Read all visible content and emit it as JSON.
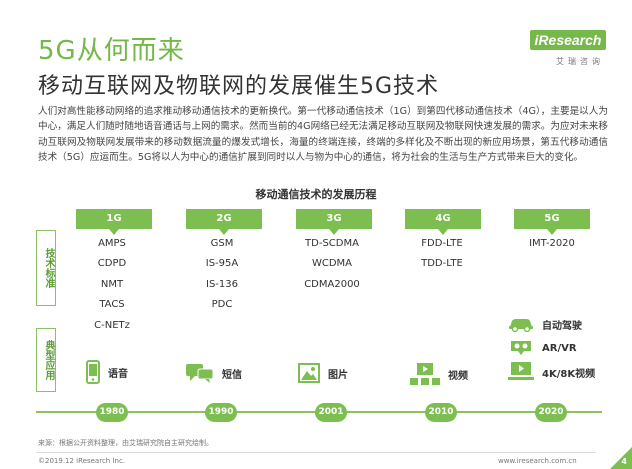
{
  "header": {
    "title": "5G从何而来",
    "subtitle": "移动互联网及物联网的发展催生5G技术"
  },
  "logo": {
    "brand": "iResearch",
    "sub": "艾瑞咨询"
  },
  "intro_paragraph": "人们对高性能移动网络的追求推动移动通信技术的更新换代。第一代移动通信技术（1G）到第四代移动通信技术（4G），主要是以人为中心，满足人们随时随地语音通话与上网的需求。然而当前的4G网络已经无法满足移动互联网及物联网快速发展的需求。为应对未来移动互联网及物联网发展带来的移动数据流量的爆发式增长，海量的终端连接，终端的多样化及不断出现的新应用场景，第五代移动通信技术（5G）应运而生。5G将以人为中心的通信扩展到同时以人与物为中心的通信，将为社会的生活与生产方式带来巨大的变化。",
  "chart_title": "移动通信技术的发展历程",
  "side_labels": {
    "standards": "技术标准",
    "applications": "典型应用"
  },
  "generations": [
    {
      "label": "1G",
      "year": "1980",
      "standards": [
        "AMPS",
        "CDPD",
        "NMT",
        "TACS",
        "C-NETz"
      ]
    },
    {
      "label": "2G",
      "year": "1990",
      "standards": [
        "GSM",
        "IS-95A",
        "IS-136",
        "PDC"
      ]
    },
    {
      "label": "3G",
      "year": "2001",
      "standards": [
        "TD-SCDMA",
        "WCDMA",
        "CDMA2000"
      ]
    },
    {
      "label": "4G",
      "year": "2010",
      "standards": [
        "FDD-LTE",
        "TDD-LTE"
      ]
    },
    {
      "label": "5G",
      "year": "2020",
      "standards": [
        "IMT-2020"
      ]
    }
  ],
  "applications": {
    "voice": "语音",
    "sms": "短信",
    "picture": "图片",
    "video": "视频",
    "autonomous": "自动驾驶",
    "arvr": "AR/VR",
    "video4k8k": "4K/8K视频"
  },
  "icons": {
    "voice": "phone-icon",
    "sms": "chat-bubbles-icon",
    "picture": "image-icon",
    "video": "video-player-icon",
    "autonomous": "car-icon",
    "arvr": "vr-headset-icon",
    "video4k8k": "tv-icon"
  },
  "colors": {
    "accent": "#7dbe50",
    "title_green": "#74b84a",
    "text": "#333333"
  },
  "footer": {
    "source": "来源：根据公开资料整理，由艾瑞研究院自主研究绘制。",
    "copyright": "©2019.12 iResearch Inc.",
    "website": "www.iresearch.com.cn",
    "page": "4"
  }
}
